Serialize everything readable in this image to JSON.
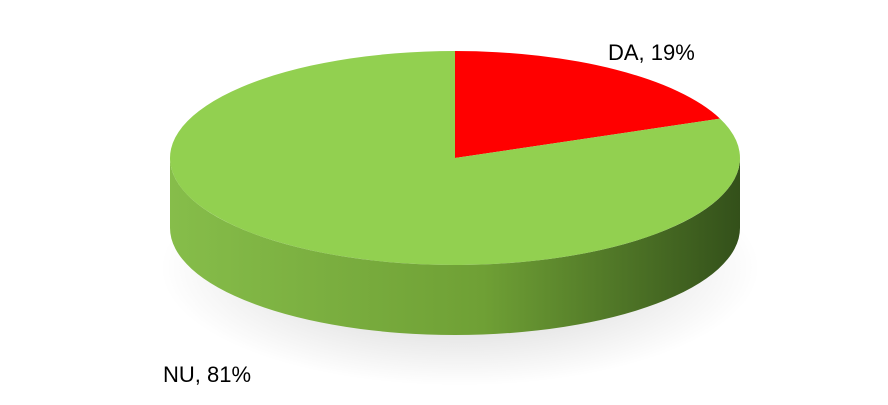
{
  "chart_data": {
    "type": "pie",
    "title": "",
    "slices": [
      {
        "label": "DA",
        "value": 19,
        "display": "DA, 19%",
        "color": "#FF0000"
      },
      {
        "label": "NU",
        "value": 81,
        "display": "NU, 81%",
        "color": "#92D050"
      }
    ],
    "side_color": "#5E8A2E",
    "legend": "none"
  }
}
